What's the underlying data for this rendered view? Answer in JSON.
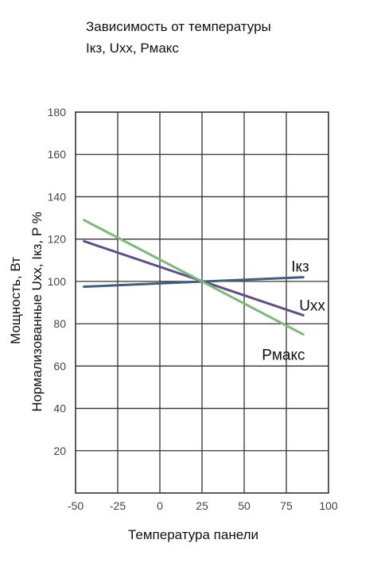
{
  "chart_data": {
    "type": "line",
    "title_lines": [
      "Зависимость от температуры",
      "Iкз, Uxx, Pмакс"
    ],
    "xlabel": "Температура панели",
    "ylabel_lines": [
      "Мощность, Вт",
      "Нормализованные Uxx, Iкз, P %"
    ],
    "xlim": [
      -50,
      100
    ],
    "ylim": [
      0,
      180
    ],
    "x_ticks": [
      -50,
      -25,
      0,
      25,
      50,
      75,
      100
    ],
    "y_ticks": [
      20,
      40,
      60,
      80,
      100,
      120,
      140,
      160,
      180
    ],
    "grid": true,
    "series": [
      {
        "name": "Iкз",
        "color": "#3f5f7f",
        "x": [
          -45,
          85
        ],
        "y": [
          97.5,
          102
        ]
      },
      {
        "name": "Uxx",
        "color": "#5c4f8c",
        "x": [
          -45,
          85
        ],
        "y": [
          119,
          84
        ]
      },
      {
        "name": "Pмакс",
        "color": "#7fb878",
        "x": [
          -45,
          85
        ],
        "y": [
          129,
          75
        ]
      }
    ]
  }
}
